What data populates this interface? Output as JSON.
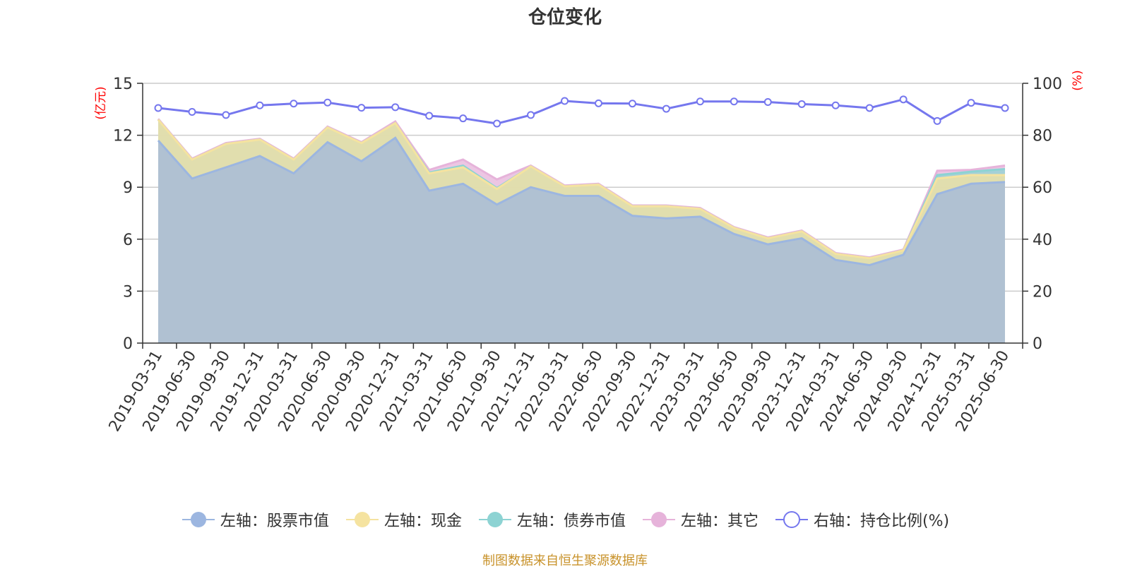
{
  "title": "仓位变化",
  "source": "制图数据来自恒生聚源数据库",
  "colors": {
    "stock": "#9cb6e0",
    "cash": "#f5e3a0",
    "bond": "#8dd3d3",
    "other": "#e6b3da",
    "ratio": "#7577ee",
    "axis_unit": "#ff0000",
    "grid": "#cccccc"
  },
  "legend": [
    {
      "label": "左轴：股票市值",
      "color": "#9cb6e0",
      "marker": "filled-circle"
    },
    {
      "label": "左轴：现金",
      "color": "#f5e3a0",
      "marker": "filled-circle"
    },
    {
      "label": "左轴：债券市值",
      "color": "#8dd3d3",
      "marker": "filled-circle"
    },
    {
      "label": "左轴：其它",
      "color": "#e6b3da",
      "marker": "filled-circle"
    },
    {
      "label": "右轴：持仓比例(%)",
      "color": "#7577ee",
      "marker": "hollow-circle"
    }
  ],
  "chart_data": {
    "type": "area",
    "stacked": true,
    "y_left_unit": "(亿元)",
    "y_right_unit": "(%)",
    "ylim_left": [
      0,
      15
    ],
    "yticks_left": [
      0,
      3,
      6,
      9,
      12,
      15
    ],
    "ylim_right": [
      0,
      100
    ],
    "yticks_right": [
      0,
      20,
      40,
      60,
      80,
      100
    ],
    "grid": true,
    "legend_position": "bottom",
    "x": [
      "2019-03-31",
      "2019-06-30",
      "2019-09-30",
      "2019-12-31",
      "2020-03-31",
      "2020-06-30",
      "2020-09-30",
      "2020-12-31",
      "2021-03-31",
      "2021-06-30",
      "2021-09-30",
      "2021-12-31",
      "2022-03-31",
      "2022-06-30",
      "2022-09-30",
      "2022-12-31",
      "2023-03-31",
      "2023-06-30",
      "2023-09-30",
      "2023-12-31",
      "2024-03-31",
      "2024-06-30",
      "2024-09-30",
      "2024-12-31",
      "2025-03-31",
      "2025-06-30"
    ],
    "series": [
      {
        "name": "左轴：股票市值",
        "axis": "left",
        "type": "area",
        "values": [
          11.7,
          9.5,
          10.15,
          10.8,
          9.8,
          11.6,
          10.5,
          11.85,
          8.8,
          9.2,
          8.0,
          9.0,
          8.5,
          8.5,
          7.35,
          7.2,
          7.3,
          6.3,
          5.7,
          6.05,
          4.8,
          4.5,
          5.1,
          8.6,
          9.2,
          9.3
        ]
      },
      {
        "name": "左轴：现金",
        "axis": "left",
        "type": "area",
        "values": [
          1.2,
          1.1,
          1.35,
          0.95,
          0.8,
          0.85,
          1.05,
          0.85,
          1.0,
          0.95,
          0.9,
          1.2,
          0.55,
          0.65,
          0.55,
          0.7,
          0.45,
          0.35,
          0.35,
          0.4,
          0.35,
          0.4,
          0.25,
          0.9,
          0.5,
          0.4
        ]
      },
      {
        "name": "左轴：债券市值",
        "axis": "left",
        "type": "area",
        "values": [
          0,
          0,
          0,
          0,
          0,
          0,
          0,
          0,
          0.05,
          0.1,
          0.05,
          0,
          0,
          0,
          0,
          0,
          0,
          0,
          0,
          0,
          0,
          0,
          0,
          0.2,
          0.2,
          0.35
        ]
      },
      {
        "name": "左轴：其它",
        "axis": "left",
        "type": "area",
        "values": [
          0.05,
          0.05,
          0.05,
          0.05,
          0.05,
          0.05,
          0.05,
          0.1,
          0.15,
          0.35,
          0.5,
          0.05,
          0.05,
          0.05,
          0.05,
          0.05,
          0.05,
          0.05,
          0.05,
          0.05,
          0.05,
          0.05,
          0.05,
          0.25,
          0.1,
          0.2
        ]
      },
      {
        "name": "右轴：持仓比例(%)",
        "axis": "right",
        "type": "line",
        "values": [
          90.5,
          89.0,
          87.8,
          91.5,
          92.2,
          92.6,
          90.6,
          90.8,
          87.5,
          86.5,
          84.5,
          87.8,
          93.2,
          92.3,
          92.2,
          90.2,
          93.0,
          93.0,
          92.8,
          92.0,
          91.5,
          90.5,
          93.8,
          85.5,
          92.5,
          90.5
        ]
      }
    ]
  }
}
